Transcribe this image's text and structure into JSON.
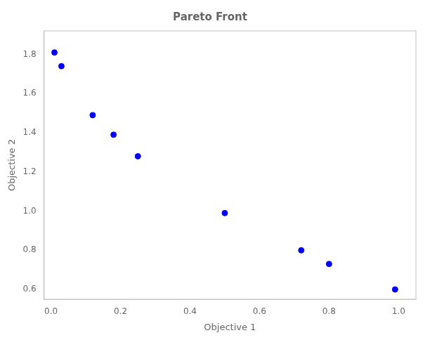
{
  "chart_data": {
    "type": "scatter",
    "title": "Pareto Front",
    "xlabel": "Objective 1",
    "ylabel": "Objective 2",
    "x": [
      0.01,
      0.03,
      0.12,
      0.18,
      0.25,
      0.5,
      0.72,
      0.8,
      0.99
    ],
    "values": [
      1.81,
      1.74,
      1.49,
      1.39,
      1.28,
      0.99,
      0.8,
      0.73,
      0.6
    ],
    "color": "blue",
    "marker": "o",
    "xlim": [
      -0.02,
      1.05
    ],
    "ylim": [
      0.55,
      1.92
    ],
    "xticks": [
      {
        "value": 0.0,
        "label": "0.0"
      },
      0.2,
      0.4,
      0.6,
      0.8,
      {
        "value": 1.0,
        "label": "1.0"
      }
    ],
    "yticks": [
      0.6,
      0.8,
      {
        "value": 1.0,
        "label": "1.0"
      },
      1.2,
      1.4,
      1.6,
      1.8
    ],
    "grid": false
  }
}
